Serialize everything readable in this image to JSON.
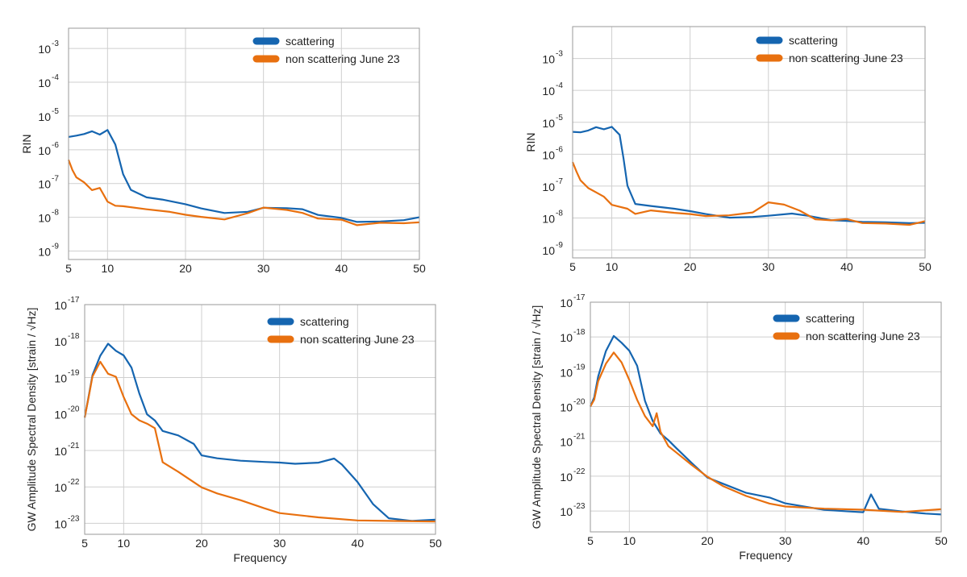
{
  "colors": {
    "scattering": "#1565b0",
    "non_scattering": "#e8700f",
    "grid": "#cfcfcf",
    "frame": "#9a9a9a"
  },
  "chart_data": [
    {
      "id": "rin-left",
      "type": "line",
      "xlabel": "",
      "ylabel": "RIN",
      "xlim": [
        5,
        50
      ],
      "xticks": [
        5,
        10,
        20,
        30,
        40,
        50
      ],
      "ylim_exp": [
        -9.25,
        -2.4
      ],
      "yticks_exp": [
        -9,
        -8,
        -7,
        -6,
        -5,
        -4,
        -3
      ],
      "grid": true,
      "legend": "top-right",
      "series": [
        {
          "name": "scattering",
          "key": "scattering",
          "points": [
            [
              5,
              -5.62
            ],
            [
              6,
              -5.55
            ],
            [
              7,
              -5.5
            ],
            [
              8,
              -5.45
            ],
            [
              9,
              -5.58
            ],
            [
              10,
              -5.45
            ],
            [
              11,
              -5.85
            ],
            [
              12,
              -6.7
            ],
            [
              13,
              -7.15
            ],
            [
              15,
              -7.4
            ],
            [
              17,
              -7.5
            ],
            [
              20,
              -7.65
            ],
            [
              22,
              -7.75
            ],
            [
              25,
              -7.85
            ],
            [
              28,
              -7.8
            ],
            [
              30,
              -7.7
            ],
            [
              33,
              -7.75
            ],
            [
              35,
              -7.8
            ],
            [
              37,
              -7.95
            ],
            [
              40,
              -8.0
            ],
            [
              42,
              -8.1
            ],
            [
              45,
              -8.1
            ],
            [
              48,
              -8.1
            ],
            [
              50,
              -8.0
            ]
          ]
        },
        {
          "name": "non scattering June 23",
          "key": "non_scattering",
          "points": [
            [
              5,
              -6.3
            ],
            [
              5.5,
              -6.6
            ],
            [
              6,
              -6.85
            ],
            [
              7,
              -7.0
            ],
            [
              8,
              -7.2
            ],
            [
              9,
              -7.1
            ],
            [
              10,
              -7.5
            ],
            [
              11,
              -7.65
            ],
            [
              12,
              -7.7
            ],
            [
              15,
              -7.8
            ],
            [
              18,
              -7.85
            ],
            [
              20,
              -7.9
            ],
            [
              22,
              -7.95
            ],
            [
              25,
              -8.05
            ],
            [
              28,
              -7.9
            ],
            [
              30,
              -7.75
            ],
            [
              33,
              -7.8
            ],
            [
              35,
              -7.85
            ],
            [
              37,
              -8.0
            ],
            [
              40,
              -8.05
            ],
            [
              42,
              -8.25
            ],
            [
              45,
              -8.2
            ],
            [
              48,
              -8.2
            ],
            [
              50,
              -8.15
            ]
          ]
        }
      ]
    },
    {
      "id": "rin-right",
      "type": "line",
      "xlabel": "",
      "ylabel": "RIN",
      "xlim": [
        5,
        50
      ],
      "xticks": [
        5,
        10,
        20,
        30,
        40,
        50
      ],
      "ylim_exp": [
        -9.25,
        -2.0
      ],
      "yticks_exp": [
        -9,
        -8,
        -7,
        -6,
        -5,
        -4,
        -3
      ],
      "grid": true,
      "legend": "top-right",
      "series": [
        {
          "name": "scattering",
          "key": "scattering",
          "points": [
            [
              5,
              -5.3
            ],
            [
              6,
              -5.28
            ],
            [
              7,
              -5.22
            ],
            [
              8,
              -5.15
            ],
            [
              9,
              -5.25
            ],
            [
              10,
              -5.18
            ],
            [
              11,
              -5.4
            ],
            [
              11.5,
              -6.1
            ],
            [
              12,
              -6.95
            ],
            [
              13,
              -7.55
            ],
            [
              15,
              -7.65
            ],
            [
              18,
              -7.75
            ],
            [
              20,
              -7.8
            ],
            [
              22,
              -7.85
            ],
            [
              25,
              -7.95
            ],
            [
              28,
              -7.95
            ],
            [
              30,
              -7.95
            ],
            [
              33,
              -7.9
            ],
            [
              35,
              -7.95
            ],
            [
              38,
              -8.05
            ],
            [
              40,
              -8.05
            ],
            [
              42,
              -8.1
            ],
            [
              45,
              -8.15
            ],
            [
              48,
              -8.2
            ],
            [
              50,
              -8.15
            ]
          ]
        },
        {
          "name": "non scattering June 23",
          "key": "non_scattering",
          "points": [
            [
              5,
              -6.25
            ],
            [
              5.5,
              -6.55
            ],
            [
              6,
              -6.85
            ],
            [
              7,
              -7.1
            ],
            [
              8,
              -7.2
            ],
            [
              9,
              -7.3
            ],
            [
              10,
              -7.55
            ],
            [
              12,
              -7.7
            ],
            [
              13,
              -7.9
            ],
            [
              15,
              -7.8
            ],
            [
              18,
              -7.85
            ],
            [
              20,
              -7.85
            ],
            [
              22,
              -7.9
            ],
            [
              25,
              -7.9
            ],
            [
              28,
              -7.85
            ],
            [
              30,
              -7.55
            ],
            [
              32,
              -7.6
            ],
            [
              34,
              -7.75
            ],
            [
              36,
              -8.0
            ],
            [
              38,
              -8.05
            ],
            [
              40,
              -8.05
            ],
            [
              42,
              -8.2
            ],
            [
              45,
              -8.2
            ],
            [
              48,
              -8.2
            ],
            [
              50,
              -8.1
            ]
          ]
        }
      ]
    },
    {
      "id": "asd-left",
      "type": "line",
      "xlabel": "Frequency",
      "ylabel": "GW Amplitude Spectral Density [strain / √Hz]",
      "xlim": [
        5,
        50
      ],
      "xticks": [
        5,
        10,
        20,
        30,
        40,
        50
      ],
      "ylim_exp": [
        -23.3,
        -17
      ],
      "yticks_exp": [
        -23,
        -22,
        -21,
        -20,
        -19,
        -18,
        -17
      ],
      "grid": true,
      "legend": "top-right",
      "series": [
        {
          "name": "scattering",
          "key": "scattering",
          "points": [
            [
              5,
              -20.1
            ],
            [
              5.5,
              -19.5
            ],
            [
              6,
              -18.9
            ],
            [
              7,
              -18.4
            ],
            [
              8,
              -18.1
            ],
            [
              9,
              -18.3
            ],
            [
              10,
              -18.4
            ],
            [
              11,
              -18.7
            ],
            [
              12,
              -19.4
            ],
            [
              13,
              -20.0
            ],
            [
              14,
              -20.2
            ],
            [
              15,
              -20.5
            ],
            [
              17,
              -20.6
            ],
            [
              19,
              -20.8
            ],
            [
              20,
              -21.1
            ],
            [
              22,
              -21.2
            ],
            [
              25,
              -21.3
            ],
            [
              28,
              -21.35
            ],
            [
              30,
              -21.35
            ],
            [
              32,
              -21.35
            ],
            [
              35,
              -21.3
            ],
            [
              37,
              -21.2
            ],
            [
              38,
              -21.4
            ],
            [
              40,
              -21.9
            ],
            [
              42,
              -22.5
            ],
            [
              44,
              -22.85
            ],
            [
              47,
              -22.9
            ],
            [
              50,
              -22.9
            ]
          ]
        },
        {
          "name": "non scattering June 23",
          "key": "non_scattering",
          "points": [
            [
              5,
              -20.1
            ],
            [
              5.5,
              -19.55
            ],
            [
              6,
              -19.0
            ],
            [
              7,
              -18.6
            ],
            [
              8,
              -18.9
            ],
            [
              9,
              -18.95
            ],
            [
              10,
              -19.5
            ],
            [
              11,
              -20.0
            ],
            [
              12,
              -20.2
            ],
            [
              13,
              -20.3
            ],
            [
              14,
              -20.4
            ],
            [
              15,
              -21.3
            ],
            [
              17,
              -21.55
            ],
            [
              20,
              -22.0
            ],
            [
              22,
              -22.2
            ],
            [
              25,
              -22.4
            ],
            [
              28,
              -22.6
            ],
            [
              30,
              -22.7
            ],
            [
              35,
              -22.8
            ],
            [
              40,
              -22.9
            ],
            [
              45,
              -22.95
            ],
            [
              50,
              -22.95
            ]
          ]
        }
      ]
    },
    {
      "id": "asd-right",
      "type": "line",
      "xlabel": "Frequency",
      "ylabel": "GW Amplitude Spectral Density [strain / √Hz]",
      "xlim": [
        5,
        50
      ],
      "xticks": [
        5,
        10,
        20,
        30,
        40,
        50
      ],
      "ylim_exp": [
        -23.6,
        -17
      ],
      "yticks_exp": [
        -23,
        -22,
        -21,
        -20,
        -19,
        -18,
        -17
      ],
      "grid": true,
      "legend": "top-right",
      "series": [
        {
          "name": "scattering",
          "key": "scattering",
          "points": [
            [
              5,
              -20.0
            ],
            [
              5.5,
              -19.7
            ],
            [
              6,
              -19.1
            ],
            [
              7,
              -18.4
            ],
            [
              8,
              -18.0
            ],
            [
              9,
              -18.2
            ],
            [
              10,
              -18.4
            ],
            [
              11,
              -18.8
            ],
            [
              12,
              -19.8
            ],
            [
              13,
              -20.4
            ],
            [
              14,
              -20.8
            ],
            [
              15,
              -21.0
            ],
            [
              16,
              -21.2
            ],
            [
              18,
              -21.6
            ],
            [
              20,
              -22.0
            ],
            [
              22,
              -22.2
            ],
            [
              25,
              -22.5
            ],
            [
              28,
              -22.65
            ],
            [
              30,
              -22.8
            ],
            [
              35,
              -22.95
            ],
            [
              40,
              -23.0
            ],
            [
              41,
              -22.5
            ],
            [
              42,
              -22.95
            ],
            [
              45,
              -23.05
            ],
            [
              48,
              -23.1
            ],
            [
              50,
              -23.1
            ]
          ]
        },
        {
          "name": "non scattering June 23",
          "key": "non_scattering",
          "points": [
            [
              5,
              -20.0
            ],
            [
              5.5,
              -19.8
            ],
            [
              6,
              -19.3
            ],
            [
              7,
              -18.8
            ],
            [
              8,
              -18.45
            ],
            [
              9,
              -18.7
            ],
            [
              10,
              -19.2
            ],
            [
              11,
              -19.8
            ],
            [
              12,
              -20.3
            ],
            [
              13,
              -20.6
            ],
            [
              13.5,
              -20.2
            ],
            [
              14,
              -20.7
            ],
            [
              15,
              -21.1
            ],
            [
              16,
              -21.3
            ],
            [
              18,
              -21.7
            ],
            [
              20,
              -22.05
            ],
            [
              22,
              -22.3
            ],
            [
              25,
              -22.55
            ],
            [
              28,
              -22.75
            ],
            [
              30,
              -22.85
            ],
            [
              35,
              -22.95
            ],
            [
              40,
              -23.0
            ],
            [
              45,
              -23.05
            ],
            [
              50,
              -22.95
            ]
          ]
        }
      ]
    }
  ]
}
